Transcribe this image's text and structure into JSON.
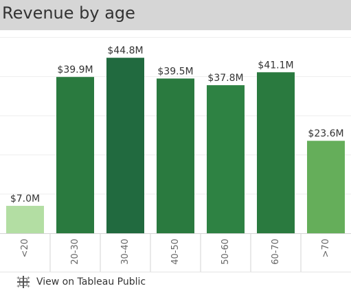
{
  "title": "Revenue by age",
  "footer": {
    "link_label": "View on Tableau Public",
    "icon": "tableau-icon"
  },
  "colors": {
    "title_bar": "#d6d6d6",
    "gridline": "#eeeeee",
    "axis_line": "#d3d3d3",
    "text": "#333333",
    "tick_text": "#666666"
  },
  "chart_data": {
    "type": "bar",
    "title": "Revenue by age",
    "xlabel": "",
    "ylabel": "",
    "categories": [
      "<20",
      "20-30",
      "30-40",
      "40-50",
      "50-60",
      "60-70",
      ">70"
    ],
    "values": [
      7.0,
      39.9,
      44.8,
      39.5,
      37.8,
      41.1,
      23.6
    ],
    "unit": "$M",
    "data_labels": [
      "$7.0M",
      "$39.9M",
      "$44.8M",
      "$39.5M",
      "$37.8M",
      "$41.1M",
      "$23.6M"
    ],
    "colors": [
      "#b3dea3",
      "#2a7a3f",
      "#216a3f",
      "#2a7a3f",
      "#2e8243",
      "#2a7a3f",
      "#65ae5a"
    ],
    "ylim": [
      0,
      50
    ],
    "grid": true,
    "legend": "none"
  }
}
